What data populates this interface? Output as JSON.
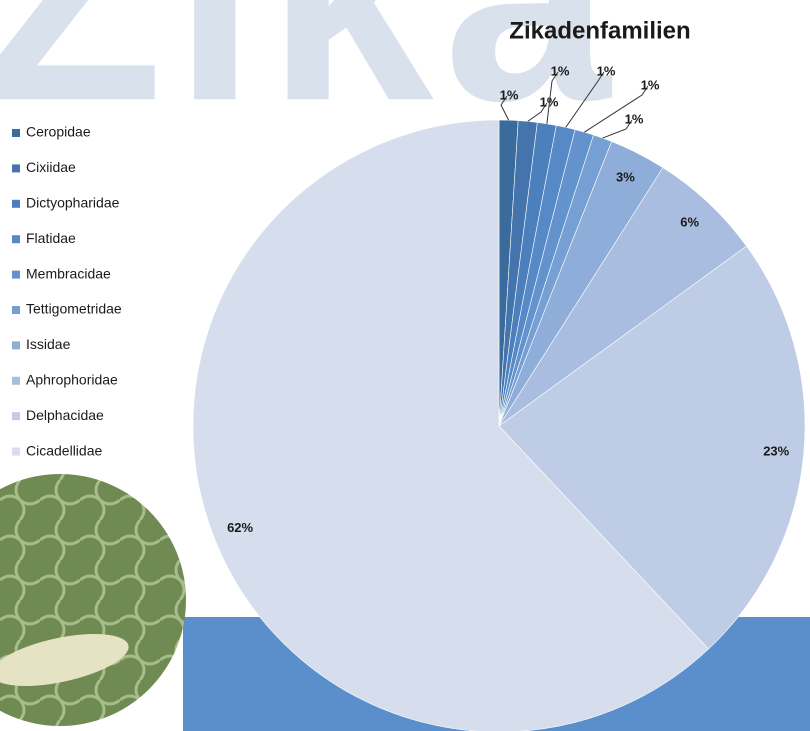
{
  "watermark": "Zika",
  "chart_data": {
    "type": "pie",
    "title": "Zikadenfamilien",
    "categories": [
      "Ceropidae",
      "Cixiidae",
      "Dictyopharidae",
      "Flatidae",
      "Membracidae",
      "Tettigometridae",
      "Issidae",
      "Aphrophoridae",
      "Delphacidae",
      "Cicadellidae"
    ],
    "values": [
      1,
      1,
      1,
      1,
      1,
      1,
      3,
      6,
      23,
      62
    ],
    "value_labels": [
      "1%",
      "1%",
      "1%",
      "1%",
      "1%",
      "1%",
      "3%",
      "6%",
      "23%",
      "62%"
    ],
    "colors": [
      "#3b6a9c",
      "#4474ab",
      "#4b80bd",
      "#5689c6",
      "#6393cc",
      "#76a0d3",
      "#8eaed9",
      "#a9bde0",
      "#bfcce6",
      "#d6dded"
    ],
    "legend": "left"
  }
}
